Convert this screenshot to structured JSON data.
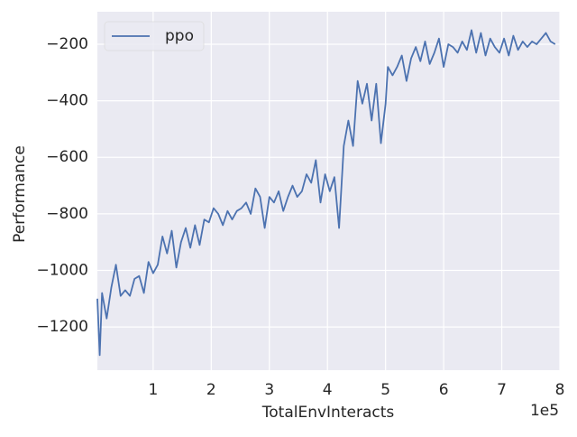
{
  "chart_data": {
    "type": "line",
    "xlabel": "TotalEnvInteracts",
    "ylabel": "Performance",
    "x_offset_label": "1e5",
    "x": [
      4000,
      8000,
      12000,
      20000,
      28000,
      36000,
      44000,
      52000,
      60000,
      68000,
      76000,
      84000,
      92000,
      100000,
      108000,
      116000,
      124000,
      132000,
      140000,
      148000,
      156000,
      164000,
      172000,
      180000,
      188000,
      196000,
      204000,
      212000,
      220000,
      228000,
      236000,
      244000,
      252000,
      260000,
      268000,
      276000,
      284000,
      292000,
      300000,
      308000,
      316000,
      324000,
      332000,
      340000,
      348000,
      356000,
      364000,
      372000,
      380000,
      388000,
      396000,
      404000,
      412000,
      420000,
      428000,
      436000,
      444000,
      452000,
      460000,
      468000,
      476000,
      484000,
      492000,
      500000,
      504000,
      512000,
      520000,
      528000,
      536000,
      544000,
      552000,
      560000,
      568000,
      576000,
      584000,
      592000,
      600000,
      608000,
      616000,
      624000,
      632000,
      640000,
      648000,
      656000,
      664000,
      672000,
      680000,
      688000,
      696000,
      704000,
      712000,
      720000,
      728000,
      736000,
      744000,
      752000,
      760000,
      768000,
      776000,
      784000,
      792000
    ],
    "series": [
      {
        "name": "ppo",
        "color": "#4c72b0",
        "values": [
          -1100,
          -1300,
          -1080,
          -1170,
          -1060,
          -980,
          -1090,
          -1070,
          -1090,
          -1030,
          -1020,
          -1080,
          -970,
          -1010,
          -980,
          -880,
          -940,
          -860,
          -990,
          -900,
          -850,
          -920,
          -840,
          -910,
          -820,
          -830,
          -780,
          -800,
          -840,
          -790,
          -820,
          -790,
          -780,
          -760,
          -800,
          -710,
          -740,
          -850,
          -740,
          -760,
          -720,
          -790,
          -740,
          -700,
          -740,
          -720,
          -660,
          -690,
          -610,
          -760,
          -660,
          -720,
          -670,
          -850,
          -560,
          -470,
          -560,
          -330,
          -410,
          -340,
          -470,
          -340,
          -550,
          -410,
          -280,
          -310,
          -280,
          -240,
          -330,
          -250,
          -210,
          -260,
          -190,
          -270,
          -230,
          -180,
          -280,
          -200,
          -210,
          -230,
          -190,
          -220,
          -150,
          -230,
          -160,
          -240,
          -180,
          -210,
          -230,
          -180,
          -240,
          -170,
          -220,
          -190,
          -210,
          -190,
          -200,
          -180,
          -160,
          -190,
          -200
        ]
      }
    ],
    "xlim": [
      4000,
      800000
    ],
    "xticks": [
      {
        "value": 100000,
        "label": "1"
      },
      {
        "value": 200000,
        "label": "2"
      },
      {
        "value": 300000,
        "label": "3"
      },
      {
        "value": 400000,
        "label": "4"
      },
      {
        "value": 500000,
        "label": "5"
      },
      {
        "value": 600000,
        "label": "6"
      },
      {
        "value": 700000,
        "label": "7"
      },
      {
        "value": 800000,
        "label": "8"
      }
    ],
    "ylim": [
      -1353,
      -85
    ],
    "yticks": [
      {
        "value": -1200,
        "label": "−1200"
      },
      {
        "value": -1000,
        "label": "−1000"
      },
      {
        "value": -800,
        "label": "−800"
      },
      {
        "value": -600,
        "label": "−600"
      },
      {
        "value": -400,
        "label": "−400"
      },
      {
        "value": -200,
        "label": "−200"
      }
    ],
    "grid": true,
    "legend": "upper left"
  }
}
